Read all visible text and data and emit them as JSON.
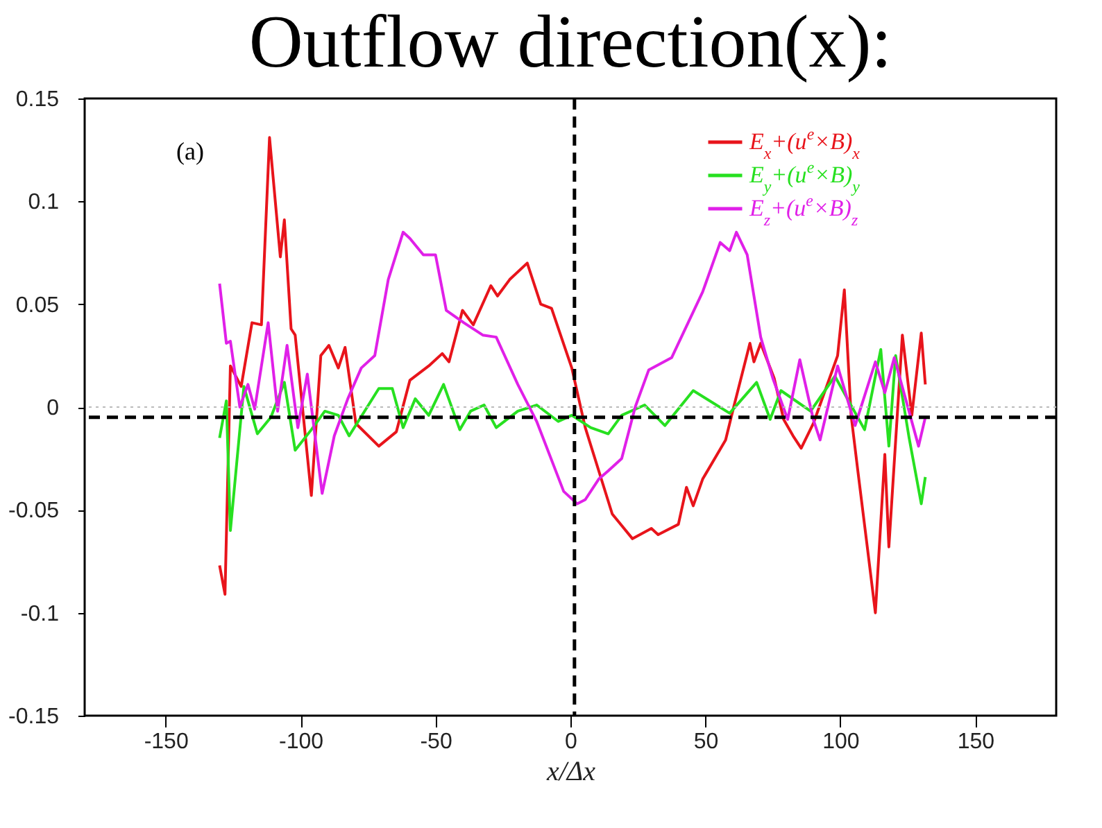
{
  "chart_data": {
    "type": "line",
    "title": "Outflow direction(x):",
    "xlabel": "x/Δx",
    "annotations": [
      "(a)"
    ],
    "xlim": [
      -180,
      180
    ],
    "xticks": [
      -150,
      -100,
      -50,
      0,
      50,
      100,
      150
    ],
    "ylim": [
      -0.15,
      0.15
    ],
    "yticks": [
      -0.15,
      -0.1,
      -0.05,
      0,
      0.05,
      0.1,
      0.15
    ],
    "grid": false,
    "legend": "top right",
    "marker": "none",
    "line_style": "solid",
    "ref_lines": [
      {
        "axis": "y",
        "value": 0,
        "color": "#bbbbbb",
        "line_style": "dotted"
      },
      {
        "axis": "y",
        "value": -0.005,
        "color": "#000000",
        "line_style": "dashed"
      },
      {
        "axis": "x",
        "value": 1.5,
        "color": "#000000",
        "line_style": "dashed"
      }
    ],
    "series": [
      {
        "name": "E$_{x}$+(u$^{e}$×B)$_{x}$",
        "color": "#e8141b",
        "x": [
          -130,
          -128,
          -126,
          -122,
          -118,
          -114.5,
          -111.5,
          -107.5,
          -106,
          -103.5,
          -102,
          -96,
          -92.5,
          -89.5,
          -86,
          -83.5,
          -79.5,
          -71,
          -64.5,
          -59.5,
          -52.5,
          -47.5,
          -45,
          -40,
          -36,
          -29.5,
          -27,
          -22.5,
          -16,
          -11,
          -7,
          0.5,
          5.5,
          15.5,
          23,
          30,
          32.5,
          40,
          43,
          45.5,
          49,
          57.5,
          60.5,
          66.5,
          68,
          70.5,
          75.5,
          79,
          82.5,
          85.5,
          90,
          99,
          101.5,
          104,
          106.5,
          110,
          113,
          116.5,
          118,
          123,
          126.5,
          130,
          131.5
        ],
        "values": [
          -0.077,
          -0.091,
          0.02,
          0.01,
          0.041,
          0.04,
          0.131,
          0.073,
          0.091,
          0.038,
          0.035,
          -0.043,
          0.025,
          0.03,
          0.019,
          0.029,
          -0.008,
          -0.019,
          -0.012,
          0.013,
          0.02,
          0.026,
          0.022,
          0.047,
          0.04,
          0.059,
          0.054,
          0.062,
          0.07,
          0.05,
          0.048,
          0.019,
          -0.01,
          -0.052,
          -0.064,
          -0.059,
          -0.062,
          -0.057,
          -0.039,
          -0.048,
          -0.035,
          -0.016,
          0,
          0.031,
          0.022,
          0.031,
          0.014,
          -0.006,
          -0.014,
          -0.02,
          -0.008,
          0.025,
          0.057,
          -0.004,
          -0.031,
          -0.068,
          -0.1,
          -0.023,
          -0.068,
          0.035,
          -0.004,
          0.036,
          0.011
        ]
      },
      {
        "name": "E$_{y}$+(u$^{e}$×B)$_{y}$",
        "color": "#27e020",
        "x": [
          -130,
          -127.5,
          -126,
          -121,
          -116,
          -111,
          -106,
          -102,
          -96,
          -91,
          -86,
          -82,
          -71,
          -66,
          -62,
          -57.5,
          -52.5,
          -47,
          -41,
          -37,
          -32,
          -27.5,
          -19.5,
          -12.5,
          -4.5,
          0.5,
          7.5,
          14,
          19,
          27.5,
          35,
          45.5,
          59,
          69,
          74,
          78,
          89,
          98,
          109,
          115,
          118,
          120.5,
          125.5,
          130,
          131.5
        ],
        "values": [
          -0.015,
          0.003,
          -0.06,
          0.01,
          -0.013,
          -0.005,
          0.012,
          -0.021,
          -0.011,
          -0.002,
          -0.004,
          -0.014,
          0.009,
          0.009,
          -0.01,
          0.004,
          -0.004,
          0.011,
          -0.011,
          -0.002,
          0.001,
          -0.01,
          -0.002,
          0.001,
          -0.007,
          -0.004,
          -0.01,
          -0.013,
          -0.004,
          0.001,
          -0.009,
          0.008,
          -0.003,
          0.012,
          -0.006,
          0.008,
          -0.002,
          0.015,
          -0.011,
          0.028,
          -0.019,
          0.025,
          -0.015,
          -0.047,
          -0.034
        ]
      },
      {
        "name": "E$_{z}$+(u$^{e}$×B)$_{z}$",
        "color": "#e020e8",
        "x": [
          -130,
          -127.5,
          -126,
          -122.5,
          -119.5,
          -117,
          -112,
          -108.5,
          -105,
          -101,
          -97.5,
          -92,
          -87.5,
          -82.5,
          -77.5,
          -72.5,
          -67.5,
          -62,
          -59.5,
          -54.5,
          -50,
          -46,
          -39.5,
          -32.5,
          -27.5,
          -19.5,
          -12.5,
          -2.5,
          2.5,
          5.5,
          10.5,
          14,
          19,
          24,
          29,
          37.5,
          49,
          55.5,
          59,
          61.5,
          65.5,
          70.5,
          75,
          80.5,
          85,
          90,
          92.5,
          99,
          105.5,
          113,
          116.5,
          120,
          129,
          131.5
        ],
        "values": [
          0.06,
          0.031,
          0.032,
          0,
          0.011,
          -0.001,
          0.041,
          -0.002,
          0.03,
          -0.01,
          0.016,
          -0.042,
          -0.014,
          0.004,
          0.019,
          0.025,
          0.062,
          0.085,
          0.082,
          0.074,
          0.074,
          0.047,
          0.041,
          0.035,
          0.034,
          0.011,
          -0.007,
          -0.041,
          -0.047,
          -0.045,
          -0.035,
          -0.031,
          -0.025,
          0,
          0.018,
          0.024,
          0.056,
          0.08,
          0.076,
          0.085,
          0.074,
          0.034,
          0.014,
          -0.006,
          0.023,
          -0.006,
          -0.016,
          0.02,
          -0.009,
          0.022,
          0.007,
          0.024,
          -0.019,
          -0.005
        ]
      }
    ]
  }
}
